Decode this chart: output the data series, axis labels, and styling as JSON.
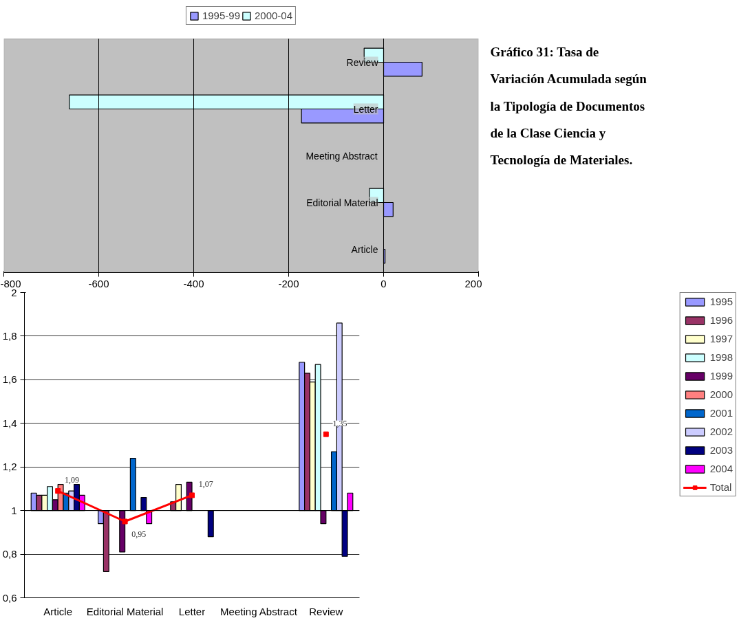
{
  "chart_data": [
    {
      "type": "bar",
      "orientation": "horizontal",
      "categories": [
        "Review",
        "Letter",
        "Meeting Abstract",
        "Editorial Material",
        "Article"
      ],
      "series": [
        {
          "name": "1995-99",
          "color": "#9999ff",
          "values": [
            81,
            -173,
            null,
            20,
            3
          ]
        },
        {
          "name": "2000-04",
          "color": "#ccffff",
          "values": [
            -41,
            -662,
            null,
            -30,
            null
          ]
        }
      ],
      "xlim": [
        -800,
        200
      ],
      "xticks": [
        -800,
        -600,
        -400,
        -200,
        0,
        200
      ],
      "grid": "x",
      "legend": "top",
      "annotations": [
        "Gráfico 31: Tasa de Variación Acumulada según la Tipología de Documentos de la Clase Ciencia y Tecnología de Materiales."
      ]
    },
    {
      "type": "bar",
      "categories": [
        "Article",
        "Editorial Material",
        "Letter",
        "Meeting Abstract",
        "Review"
      ],
      "ref_lines": [
        {
          "axis": "y",
          "value": 1
        }
      ],
      "series": [
        {
          "name": "1995",
          "color": "#9999ff",
          "base": [
            1,
            1,
            null,
            null,
            1
          ],
          "values": [
            0.08,
            -0.06,
            null,
            null,
            0.68
          ]
        },
        {
          "name": "1996",
          "color": "#993366",
          "base": [
            1,
            1,
            1,
            null,
            1
          ],
          "values": [
            0.07,
            -0.28,
            0.04,
            null,
            0.63
          ]
        },
        {
          "name": "1997",
          "color": "#ffffcc",
          "base": [
            1,
            null,
            1,
            null,
            1
          ],
          "values": [
            0.07,
            null,
            0.12,
            null,
            0.59
          ]
        },
        {
          "name": "1998",
          "color": "#ccffff",
          "base": [
            1,
            null,
            null,
            null,
            1
          ],
          "values": [
            0.11,
            null,
            null,
            null,
            0.67
          ]
        },
        {
          "name": "1999",
          "color": "#660066",
          "base": [
            1,
            1,
            1,
            null,
            1
          ],
          "values": [
            0.05,
            -0.19,
            0.13,
            null,
            -0.06
          ]
        },
        {
          "name": "2000",
          "color": "#ff8080",
          "base": [
            1,
            null,
            null,
            null,
            null
          ],
          "values": [
            0.12,
            null,
            null,
            null,
            null
          ]
        },
        {
          "name": "2001",
          "color": "#0066cc",
          "base": [
            1,
            1,
            null,
            null,
            1
          ],
          "values": [
            0.08,
            0.24,
            null,
            null,
            0.27
          ]
        },
        {
          "name": "2002",
          "color": "#ccccff",
          "base": [
            1,
            null,
            null,
            null,
            1
          ],
          "values": [
            0.09,
            null,
            null,
            null,
            0.86
          ]
        },
        {
          "name": "2003",
          "color": "#000080",
          "base": [
            1,
            1,
            1,
            null,
            1
          ],
          "values": [
            0.12,
            0.06,
            -0.12,
            null,
            -0.21
          ]
        },
        {
          "name": "2004",
          "color": "#ff00ff",
          "base": [
            1,
            1,
            null,
            null,
            1
          ],
          "values": [
            0.07,
            -0.06,
            null,
            null,
            0.08
          ]
        },
        {
          "name": "Total",
          "type": "line",
          "color": "#ff0000",
          "marker": "square",
          "values": [
            1.09,
            0.95,
            1.07,
            null,
            1.35
          ],
          "value_labels": [
            "1,09",
            "0,95",
            "1,07",
            null,
            "1,35"
          ]
        }
      ],
      "ylim": [
        0.6,
        2
      ],
      "yticks": [
        {
          "value": 0.6,
          "label": "0,6"
        },
        {
          "value": 0.8,
          "label": "0,8"
        },
        1,
        {
          "value": 1.2,
          "label": "1,2"
        },
        {
          "value": 1.4,
          "label": "1,4"
        },
        {
          "value": 1.6,
          "label": "1,6"
        },
        {
          "value": 1.8,
          "label": "1,8"
        },
        2
      ],
      "grid": "y",
      "legend": "right"
    }
  ]
}
